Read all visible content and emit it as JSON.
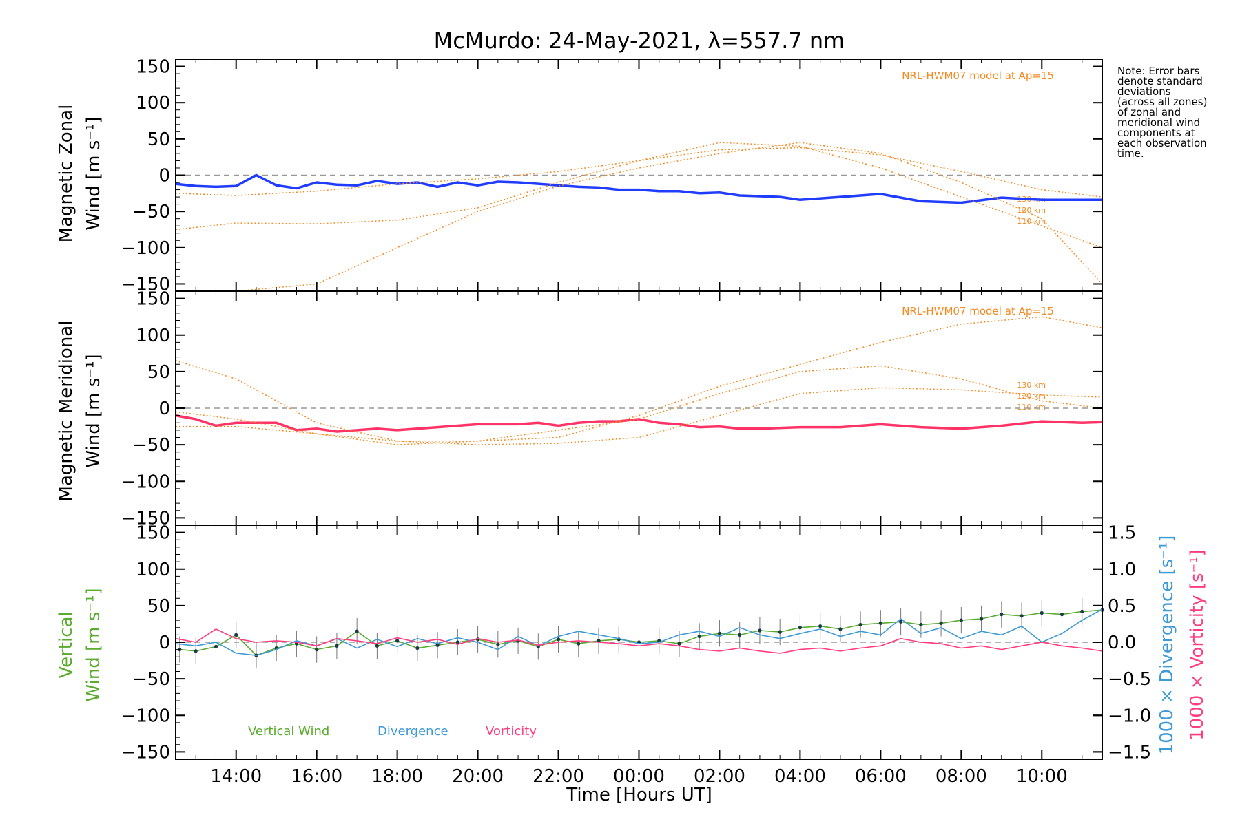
{
  "chart_data": {
    "type": "line",
    "title": "McMurdo: 24-May-2021, λ=557.7 nm",
    "xlabel": "Time [Hours UT]",
    "x_units": "hours since 00:00 UT on 24-May-2021",
    "xlim": [
      12.5,
      35.5
    ],
    "x_ticks": [
      {
        "value": 14,
        "label": "14:00"
      },
      {
        "value": 16,
        "label": "16:00"
      },
      {
        "value": 18,
        "label": "18:00"
      },
      {
        "value": 20,
        "label": "20:00"
      },
      {
        "value": 22,
        "label": "22:00"
      },
      {
        "value": 24,
        "label": "00:00"
      },
      {
        "value": 26,
        "label": "02:00"
      },
      {
        "value": 28,
        "label": "04:00"
      },
      {
        "value": 30,
        "label": "06:00"
      },
      {
        "value": 32,
        "label": "08:00"
      },
      {
        "value": 34,
        "label": "10:00"
      }
    ],
    "note": "Note: Error bars denote standard deviations (across all zones) of zonal and meridional wind components at each observation time.",
    "note_lines": [
      "Note: Error bars",
      "denote standard",
      "deviations",
      "(across all zones)",
      "of zonal and",
      "meridional wind",
      "components at",
      "each observation",
      "time."
    ],
    "panels": [
      {
        "id": "zonal",
        "ylabel_line1": "Magnetic Zonal",
        "ylabel_line2": "Wind [m s⁻¹]",
        "ylim": [
          -160,
          160
        ],
        "yticks": [
          -150,
          -100,
          -50,
          0,
          50,
          100,
          150
        ],
        "model_label": "NRL-HWM07 model at Ap=15",
        "model_color": "#f5891f",
        "altitude_labels": [
          "130 km",
          "120 km",
          "110 km"
        ],
        "series": [
          {
            "name": "Magnetic Zonal Wind (mean)",
            "color": "#1f3cff",
            "x": [
              12.5,
              13.0,
              13.5,
              14.0,
              14.5,
              15.0,
              15.5,
              16.0,
              16.5,
              17.0,
              17.5,
              18.0,
              18.5,
              19.0,
              19.5,
              20.0,
              20.5,
              21.0,
              21.5,
              22.0,
              22.5,
              23.0,
              23.5,
              24.0,
              24.5,
              25.0,
              25.5,
              26.0,
              26.5,
              27.0,
              27.5,
              28.0,
              29.0,
              30.0,
              31.0,
              32.0,
              33.0,
              34.0,
              35.0,
              35.5
            ],
            "y": [
              -12,
              -15,
              -16,
              -15,
              0,
              -14,
              -18,
              -10,
              -13,
              -14,
              -8,
              -12,
              -10,
              -16,
              -10,
              -14,
              -9,
              -10,
              -12,
              -14,
              -16,
              -17,
              -20,
              -20,
              -22,
              -22,
              -25,
              -24,
              -28,
              -29,
              -30,
              -34,
              -30,
              -26,
              -36,
              -38,
              -31,
              -34,
              -34,
              -34
            ]
          },
          {
            "name": "NRL-HWM07 130 km",
            "color": "#f5891f",
            "x": [
              12.5,
              14,
              16,
              18,
              20,
              22,
              24,
              26,
              28,
              30,
              32,
              34,
              35.5
            ],
            "y": [
              -75,
              -66,
              -67,
              -62,
              -45,
              -10,
              20,
              35,
              38,
              28,
              5,
              -20,
              -30
            ]
          },
          {
            "name": "NRL-HWM07 120 km",
            "color": "#f5891f",
            "x": [
              12.5,
              14,
              16,
              18,
              20,
              22,
              24,
              26,
              28,
              30,
              32,
              34,
              35.5
            ],
            "y": [
              -25,
              -28,
              -22,
              -12,
              -5,
              5,
              20,
              45,
              40,
              10,
              -30,
              -70,
              -100
            ]
          },
          {
            "name": "NRL-HWM07 110 km",
            "color": "#f5891f",
            "x": [
              12.5,
              14,
              16,
              18,
              20,
              22,
              24,
              26,
              28,
              30,
              32,
              34,
              35.5
            ],
            "y": [
              -195,
              -180,
              -150,
              -100,
              -50,
              -15,
              10,
              30,
              45,
              30,
              -10,
              -60,
              -150
            ]
          }
        ]
      },
      {
        "id": "meridional",
        "ylabel_line1": "Magnetic Meridional",
        "ylabel_line2": "Wind [m s⁻¹]",
        "ylim": [
          -160,
          160
        ],
        "yticks": [
          -150,
          -100,
          -50,
          0,
          50,
          100,
          150
        ],
        "model_label": "NRL-HWM07 model at Ap=15",
        "model_color": "#f5891f",
        "altitude_labels": [
          "130 km",
          "120 km",
          "110 km"
        ],
        "series": [
          {
            "name": "Magnetic Meridional Wind (mean)",
            "color": "#ff3366",
            "x": [
              12.5,
              13.0,
              13.5,
              14.0,
              15.0,
              15.5,
              16.0,
              16.5,
              17.0,
              17.5,
              18.0,
              18.5,
              19.0,
              19.5,
              20.0,
              20.5,
              21.0,
              21.5,
              22.0,
              22.5,
              23.0,
              23.5,
              24.0,
              24.5,
              25.0,
              25.5,
              26.0,
              26.5,
              27.0,
              28.0,
              29.0,
              30.0,
              31.0,
              32.0,
              33.0,
              34.0,
              35.0,
              35.5
            ],
            "y": [
              -10,
              -15,
              -24,
              -20,
              -20,
              -30,
              -28,
              -32,
              -30,
              -28,
              -30,
              -28,
              -26,
              -24,
              -22,
              -22,
              -22,
              -20,
              -24,
              -20,
              -18,
              -18,
              -15,
              -20,
              -22,
              -26,
              -25,
              -28,
              -28,
              -26,
              -26,
              -22,
              -26,
              -28,
              -24,
              -18,
              -20,
              -19
            ]
          },
          {
            "name": "NRL-HWM07 130 km",
            "color": "#f5891f",
            "x": [
              12.5,
              14,
              16,
              18,
              20,
              22,
              24,
              26,
              28,
              30,
              32,
              34,
              35.5
            ],
            "y": [
              -25,
              -25,
              -35,
              -45,
              -50,
              -48,
              -40,
              -10,
              20,
              28,
              25,
              18,
              15
            ]
          },
          {
            "name": "NRL-HWM07 120 km",
            "color": "#f5891f",
            "x": [
              12.5,
              14,
              16,
              18,
              20,
              22,
              24,
              26,
              28,
              30,
              32,
              34,
              35.5
            ],
            "y": [
              -5,
              -15,
              -35,
              -50,
              -45,
              -30,
              -15,
              20,
              50,
              58,
              40,
              10,
              0
            ]
          },
          {
            "name": "NRL-HWM07 110 km",
            "color": "#f5891f",
            "x": [
              12.5,
              14,
              16,
              18,
              20,
              22,
              24,
              26,
              28,
              30,
              32,
              34,
              35.5
            ],
            "y": [
              65,
              40,
              -20,
              -45,
              -45,
              -40,
              -10,
              30,
              60,
              90,
              115,
              125,
              110
            ]
          }
        ]
      },
      {
        "id": "vertical",
        "ylabel_line1": "Vertical",
        "ylabel_line2": "Wind [m s⁻¹]",
        "ylabel_color": "#5aab2e",
        "ylim": [
          -160,
          160
        ],
        "yticks": [
          -150,
          -100,
          -50,
          0,
          50,
          100,
          150
        ],
        "right_axis": {
          "ylim": [
            -1.6,
            1.6
          ],
          "yticks": [
            -1.5,
            -1.0,
            -0.5,
            0.0,
            0.5,
            1.0,
            1.5
          ],
          "ytick_labels": [
            "−1.5",
            "−1.0",
            "−0.5",
            "0.0",
            "0.5",
            "1.0",
            "1.5"
          ],
          "label_divergence": "1000 × Divergence [s⁻¹]",
          "label_vorticity": "1000 × Vorticity [s⁻¹]"
        },
        "legend": [
          "Vertical Wind",
          "Divergence",
          "Vorticity"
        ],
        "series": [
          {
            "name": "Vertical Wind",
            "color": "#5aab2e",
            "axis": "left",
            "x": [
              12.6,
              13.0,
              13.5,
              14.0,
              14.5,
              15.0,
              15.5,
              16.0,
              16.5,
              17.0,
              17.5,
              18.0,
              18.5,
              19.0,
              19.5,
              20.0,
              20.5,
              21.0,
              21.5,
              22.0,
              22.5,
              23.0,
              23.5,
              24.0,
              24.5,
              25.0,
              25.5,
              26.0,
              26.5,
              27.0,
              27.5,
              28.0,
              28.5,
              29.0,
              29.5,
              30.0,
              30.5,
              31.0,
              31.5,
              32.0,
              32.5,
              33.0,
              33.5,
              34.0,
              34.5,
              35.0,
              35.5
            ],
            "y": [
              -10,
              -12,
              -6,
              10,
              -18,
              -8,
              -2,
              -10,
              -5,
              15,
              -5,
              2,
              -8,
              -4,
              0,
              4,
              -3,
              2,
              -6,
              4,
              -2,
              2,
              4,
              0,
              2,
              -2,
              8,
              12,
              10,
              16,
              14,
              20,
              22,
              18,
              24,
              26,
              28,
              24,
              26,
              30,
              32,
              38,
              36,
              40,
              38,
              42,
              44
            ]
          },
          {
            "name": "Divergence",
            "color": "#3d9ad6",
            "axis": "right",
            "x": [
              12.5,
              13.0,
              13.5,
              14.0,
              14.5,
              15.0,
              15.5,
              16.0,
              16.5,
              17.0,
              17.5,
              18.0,
              18.5,
              19.0,
              19.5,
              20.0,
              20.5,
              21.0,
              21.5,
              22.0,
              22.5,
              23.0,
              23.5,
              24.0,
              24.5,
              25.0,
              25.5,
              26.0,
              26.5,
              27.0,
              27.5,
              28.0,
              28.5,
              29.0,
              29.5,
              30.0,
              30.5,
              31.0,
              31.5,
              32.0,
              32.5,
              33.0,
              33.5,
              34.0,
              34.5,
              35.0,
              35.5
            ],
            "y": [
              -0.02,
              -0.05,
              0.0,
              -0.15,
              -0.18,
              -0.1,
              0.02,
              -0.05,
              0.05,
              -0.08,
              0.04,
              -0.06,
              0.05,
              -0.02,
              0.06,
              0.0,
              -0.1,
              0.08,
              -0.05,
              0.08,
              0.15,
              0.1,
              0.05,
              -0.02,
              0.0,
              0.1,
              0.15,
              0.08,
              0.2,
              0.1,
              0.05,
              0.12,
              0.18,
              0.08,
              0.15,
              0.1,
              0.32,
              0.12,
              0.2,
              0.05,
              0.15,
              0.1,
              0.22,
              0.0,
              0.12,
              0.3,
              0.45
            ]
          },
          {
            "name": "Vorticity",
            "color": "#ff3d7f",
            "axis": "right",
            "x": [
              12.5,
              13.0,
              13.5,
              14.0,
              14.5,
              15.0,
              15.5,
              16.0,
              16.5,
              17.0,
              17.5,
              18.0,
              18.5,
              19.0,
              19.5,
              20.0,
              20.5,
              21.0,
              21.5,
              22.0,
              22.5,
              23.0,
              23.5,
              24.0,
              24.5,
              25.0,
              25.5,
              26.0,
              26.5,
              27.0,
              27.5,
              28.0,
              28.5,
              29.0,
              29.5,
              30.0,
              30.5,
              31.0,
              31.5,
              32.0,
              32.5,
              33.0,
              33.5,
              34.0,
              34.5,
              35.0,
              35.5
            ],
            "y": [
              0.05,
              0.0,
              0.18,
              0.05,
              0.0,
              0.02,
              0.0,
              -0.05,
              0.05,
              0.02,
              -0.02,
              0.06,
              0.0,
              0.04,
              -0.03,
              0.05,
              0.0,
              0.03,
              -0.04,
              0.0,
              0.02,
              0.0,
              -0.02,
              -0.05,
              -0.02,
              -0.05,
              -0.1,
              -0.12,
              -0.08,
              -0.12,
              -0.15,
              -0.1,
              -0.08,
              -0.12,
              -0.08,
              -0.05,
              0.05,
              0.0,
              -0.02,
              -0.08,
              -0.05,
              -0.1,
              -0.05,
              0.0,
              -0.05,
              -0.08,
              -0.12
            ]
          }
        ]
      }
    ]
  }
}
